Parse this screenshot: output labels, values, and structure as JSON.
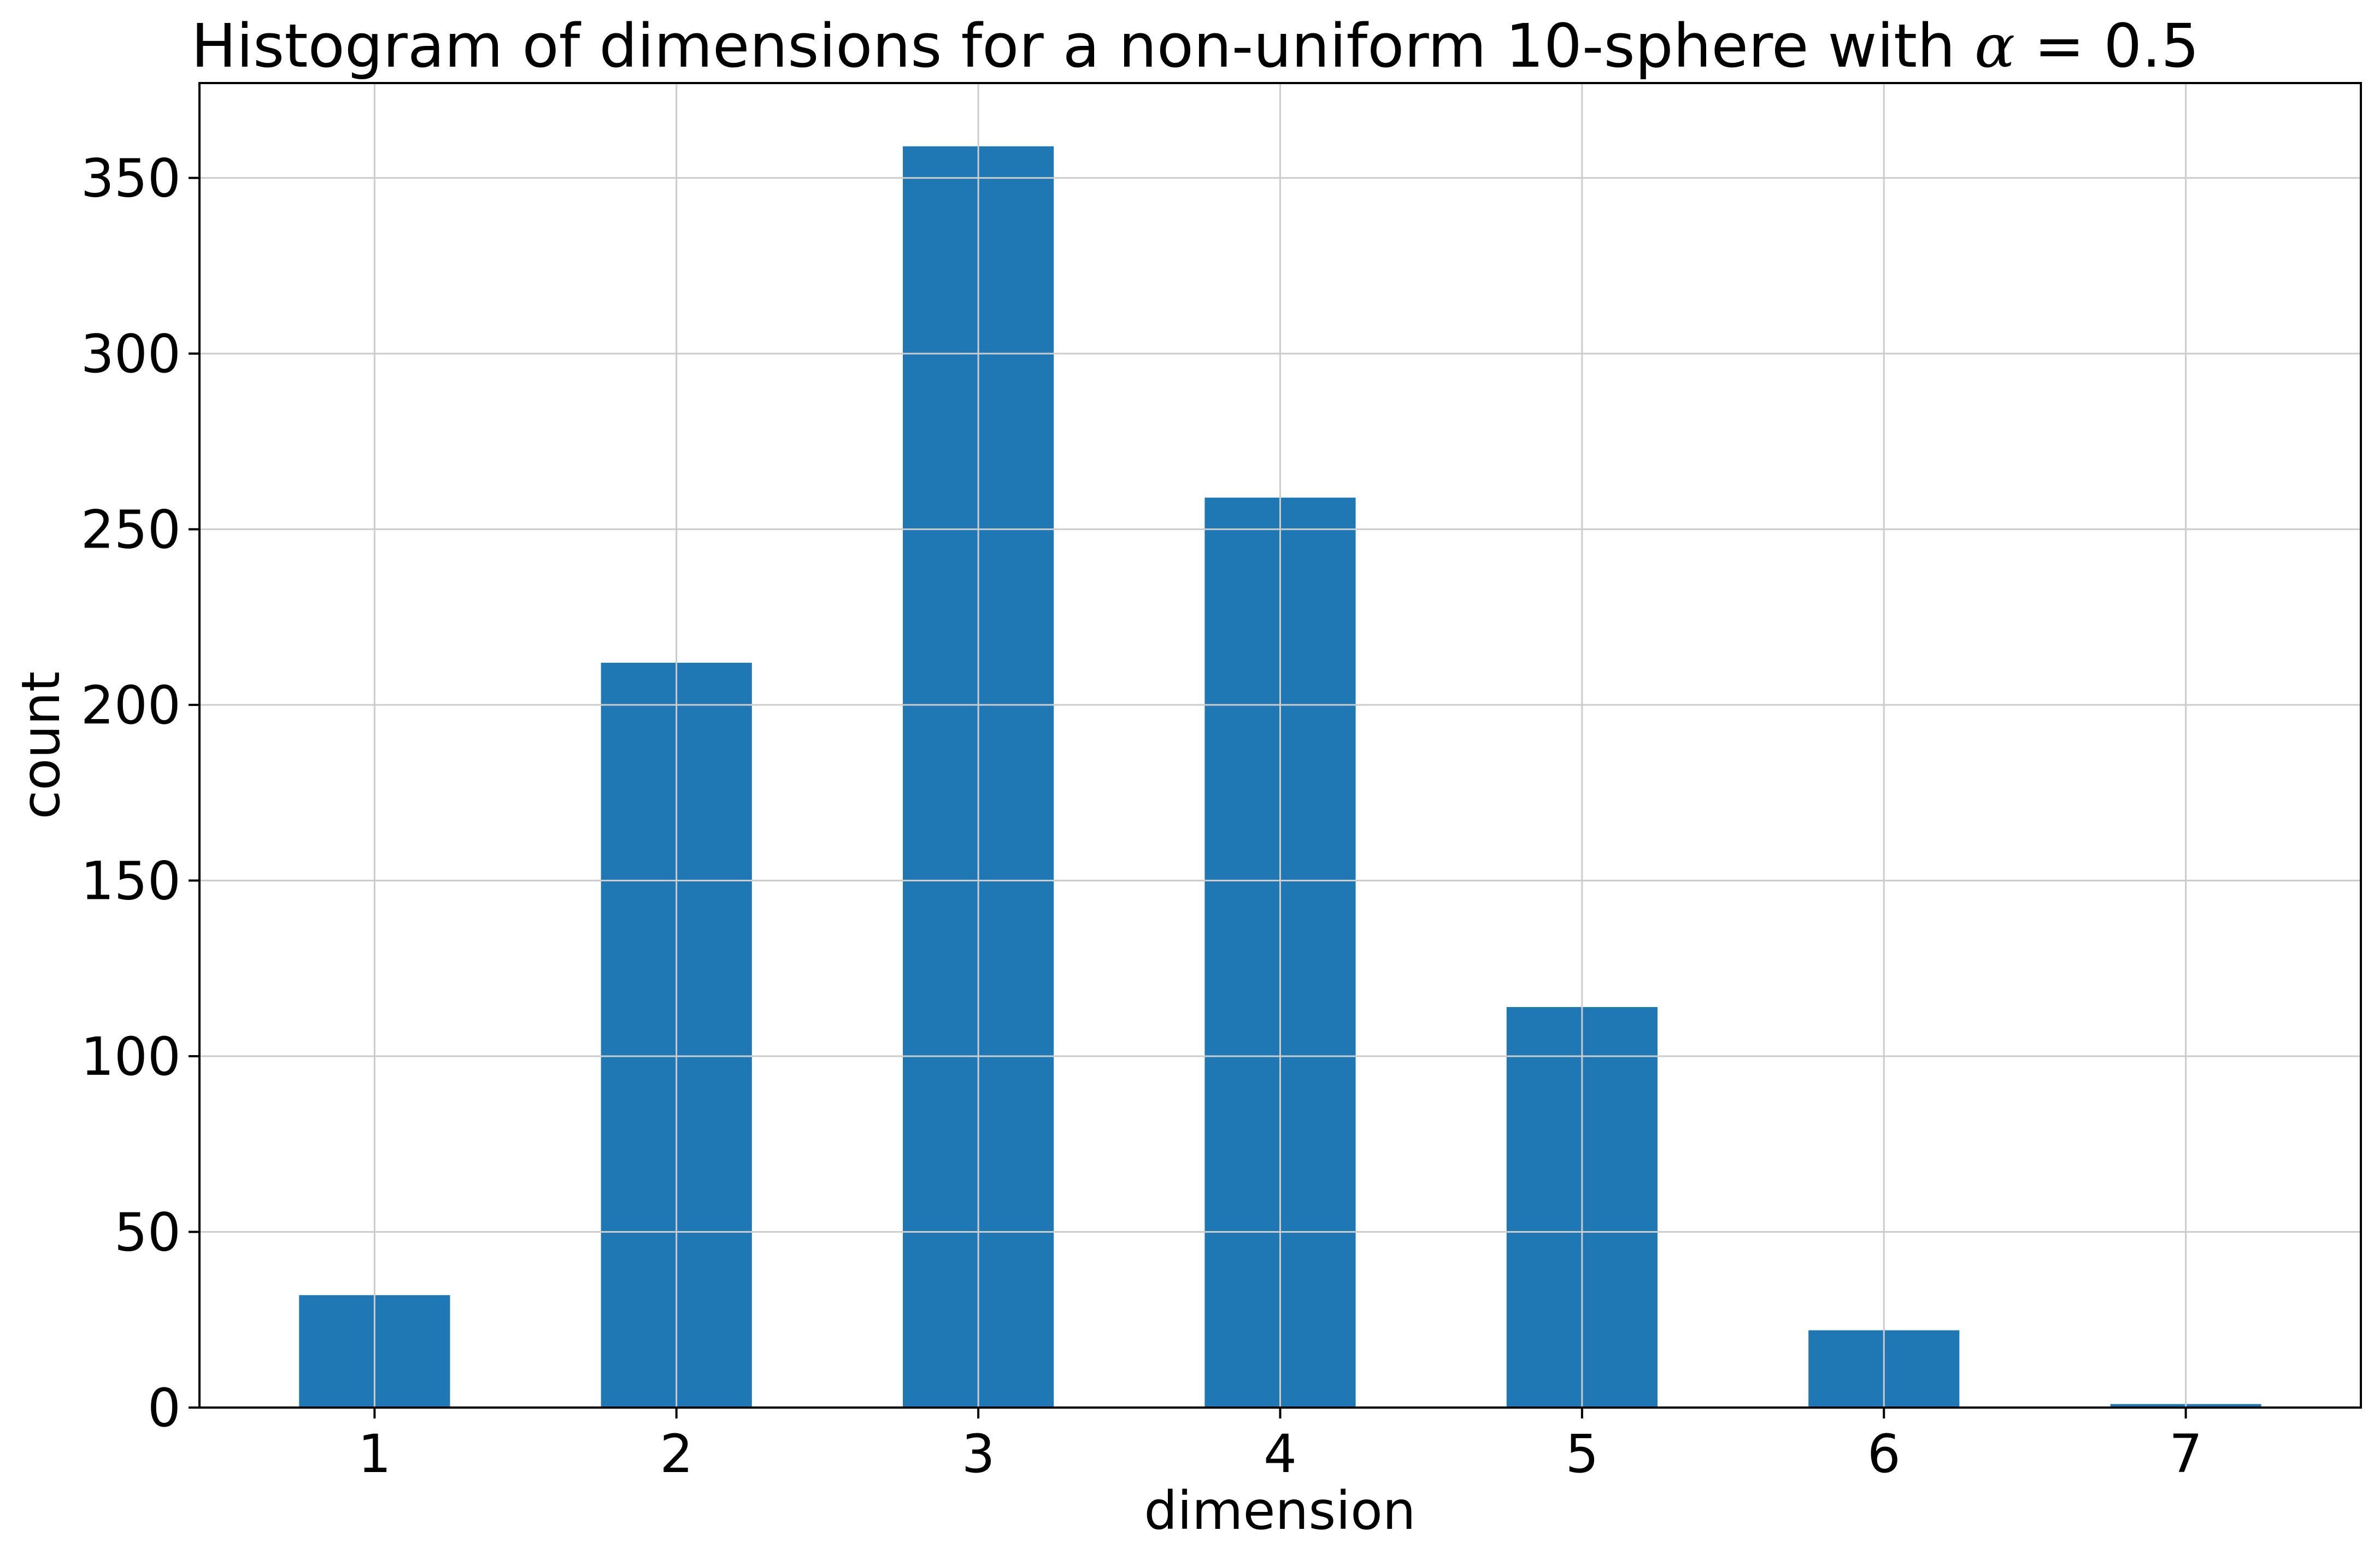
{
  "chart_data": {
    "type": "bar",
    "title": {
      "prefix": "Histogram of dimensions for a non-uniform 10-sphere with ",
      "symbol": "α",
      "suffix": " = 0.5"
    },
    "xlabel": "dimension",
    "ylabel": "count",
    "categories": [
      "1",
      "2",
      "3",
      "4",
      "5",
      "6",
      "7"
    ],
    "x": [
      1,
      2,
      3,
      4,
      5,
      6,
      7
    ],
    "values": [
      32,
      212,
      359,
      259,
      114,
      22,
      1
    ],
    "xlim": [
      0.42,
      7.58
    ],
    "ylim": [
      0,
      377
    ],
    "yticks": [
      0,
      50,
      100,
      150,
      200,
      250,
      300,
      350
    ],
    "bar_width": 0.5,
    "grid": true,
    "bar_color": "#1f77b4"
  }
}
